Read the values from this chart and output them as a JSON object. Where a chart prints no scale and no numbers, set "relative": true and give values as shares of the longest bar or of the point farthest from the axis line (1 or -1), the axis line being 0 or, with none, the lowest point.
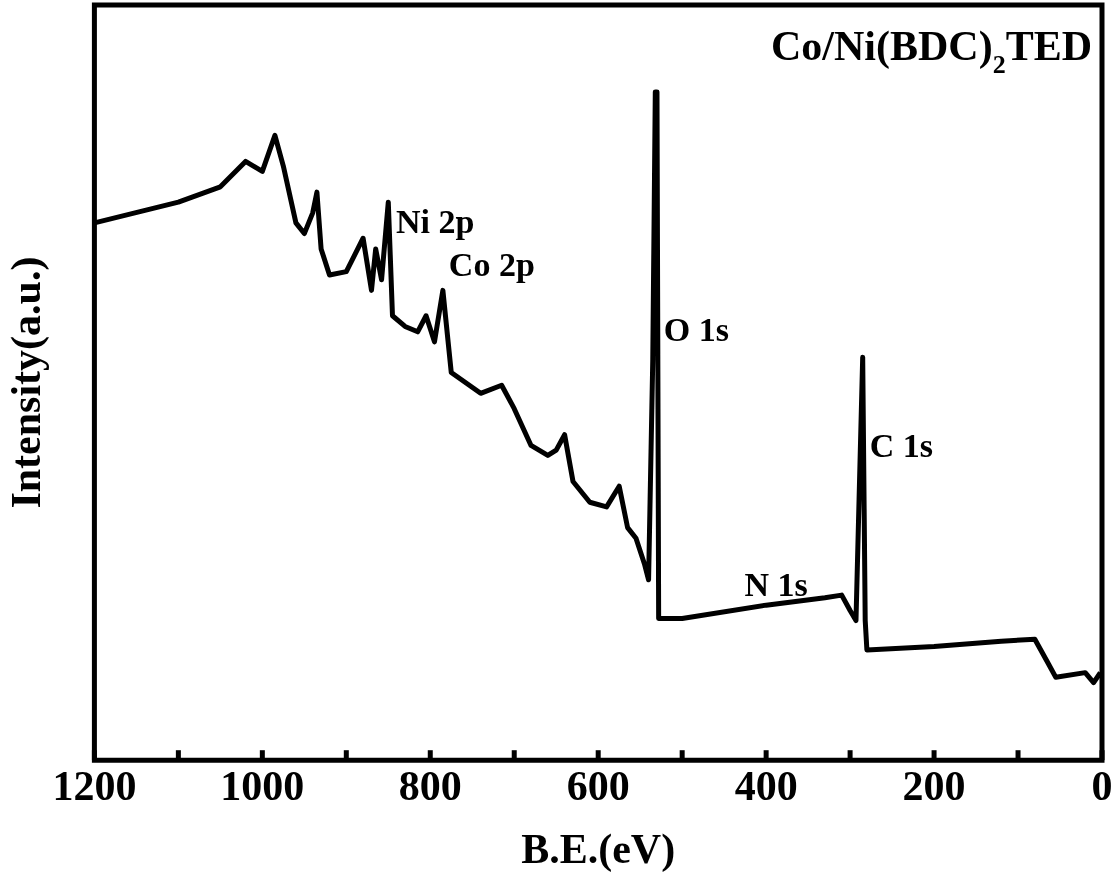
{
  "chart_data": {
    "type": "line",
    "title": "Co/Ni(BDC)$_{2}$TED",
    "xlabel": "B.E.(eV)",
    "ylabel": "Intensity(a.u.)",
    "relative": true,
    "xlim": [
      1200,
      0
    ],
    "xticks": [
      0,
      {
        "value": 100,
        "label": null
      },
      200,
      {
        "value": 300,
        "label": null
      },
      400,
      {
        "value": 500,
        "label": null
      },
      600,
      {
        "value": 700,
        "label": null
      },
      800,
      {
        "value": 900,
        "label": null
      },
      1000,
      {
        "value": 1100,
        "label": null
      },
      1200
    ],
    "grid": false,
    "legend": false,
    "tick_labels": "x",
    "series": [
      {
        "color": "#000000",
        "x": [
          1200,
          1100,
          1050,
          1020,
          1000,
          985,
          975,
          960,
          950,
          940,
          935,
          930,
          920,
          900,
          880,
          870,
          865,
          858,
          850,
          845,
          830,
          815,
          805,
          795,
          785,
          775,
          740,
          715,
          700,
          680,
          660,
          650,
          640,
          630,
          610,
          590,
          575,
          565,
          555,
          545,
          540,
          535,
          532,
          530,
          528,
          500,
          400,
          330,
          310,
          300,
          293,
          285,
          282,
          280,
          200,
          120,
          80,
          65,
          55,
          20,
          10,
          2
        ],
        "values": [
          0.804,
          0.835,
          0.858,
          0.896,
          0.881,
          0.935,
          0.889,
          0.804,
          0.788,
          0.819,
          0.85,
          0.765,
          0.726,
          0.731,
          0.781,
          0.703,
          0.765,
          0.719,
          0.835,
          0.665,
          0.649,
          0.641,
          0.665,
          0.626,
          0.703,
          0.58,
          0.549,
          0.561,
          0.526,
          0.471,
          0.456,
          0.464,
          0.487,
          0.417,
          0.386,
          0.379,
          0.41,
          0.348,
          0.332,
          0.294,
          0.27,
          0.6,
          1.0,
          1.0,
          0.212,
          0.212,
          0.232,
          0.243,
          0.247,
          0.224,
          0.209,
          0.603,
          0.209,
          0.165,
          0.17,
          0.178,
          0.181,
          0.147,
          0.124,
          0.131,
          0.116,
          0.131
        ]
      }
    ],
    "annotations": [
      {
        "text": "Ni 2p",
        "x": 848,
        "y": 0.767
      },
      {
        "text": "Co 2p",
        "x": 785,
        "y": 0.703
      },
      {
        "text": "O 1s",
        "x": 529,
        "y": 0.606
      },
      {
        "text": "N 1s",
        "x": 433,
        "y": 0.225
      },
      {
        "text": "C 1s",
        "x": 283.7,
        "y": 0.432
      }
    ]
  }
}
